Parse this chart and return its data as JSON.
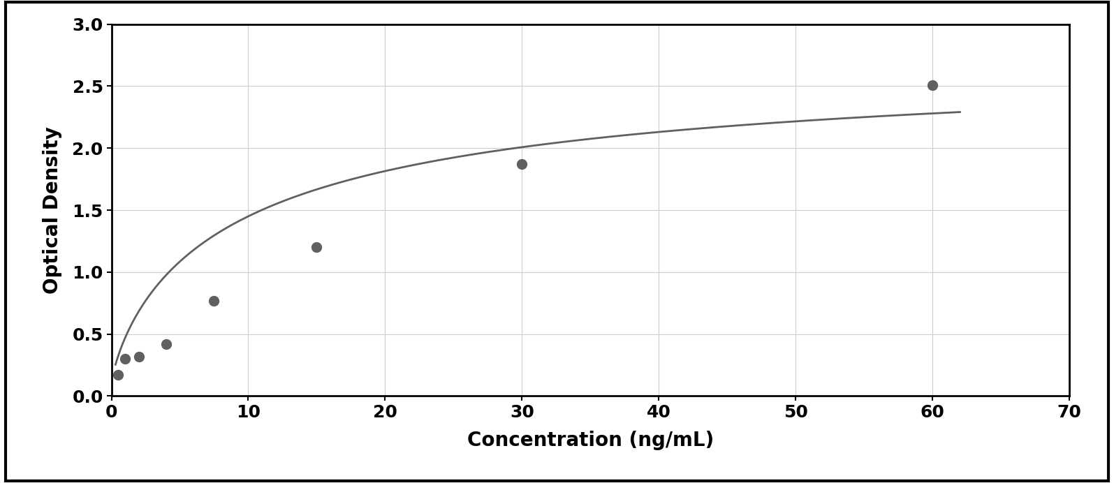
{
  "x_data": [
    0.5,
    1.0,
    2.0,
    4.0,
    7.5,
    15.0,
    30.0,
    60.0
  ],
  "y_data": [
    0.17,
    0.3,
    0.32,
    0.42,
    0.77,
    1.2,
    1.87,
    2.51
  ],
  "xlabel": "Concentration (ng/mL)",
  "ylabel": "Optical Density",
  "xlim": [
    0,
    70
  ],
  "ylim": [
    0,
    3
  ],
  "xticks": [
    0,
    10,
    20,
    30,
    40,
    50,
    60,
    70
  ],
  "yticks": [
    0,
    0.5,
    1.0,
    1.5,
    2.0,
    2.5,
    3.0
  ],
  "dot_color": "#606060",
  "line_color": "#606060",
  "background_color": "#ffffff",
  "outer_bg": "#f0f0f0",
  "grid_color": "#cccccc",
  "xlabel_fontsize": 20,
  "ylabel_fontsize": 20,
  "tick_fontsize": 18,
  "dot_size": 100,
  "line_width": 2.0,
  "fig_width": 15.95,
  "fig_height": 6.92,
  "curve_x_end": 62
}
